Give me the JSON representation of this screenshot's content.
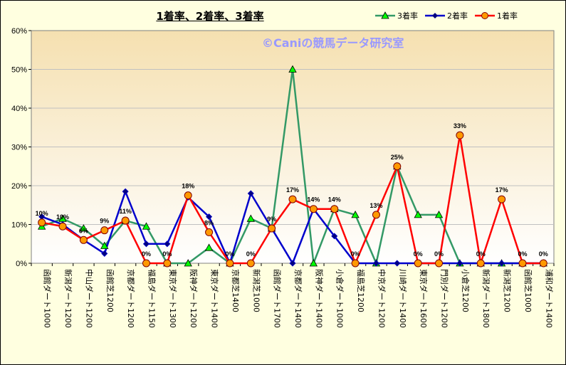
{
  "chart_data": {
    "type": "line",
    "title": "1着率、2着率、3着率",
    "watermark": "©Caniの競馬データ研究室",
    "ylim": [
      0,
      60
    ],
    "yticks": [
      "0%",
      "10%",
      "20%",
      "30%",
      "40%",
      "50%",
      "60%"
    ],
    "categories": [
      "函館ダート1000",
      "新潟ダート1200",
      "中山ダート1200",
      "函館芝1200",
      "京都ダート1200",
      "福島ダート1150",
      "東京ダート1300",
      "阪神ダート1200",
      "東京ダート1400",
      "京都芝1400",
      "新潟芝1000",
      "函館ダート1700",
      "京都ダート1400",
      "阪神ダート1400",
      "小倉ダート1000",
      "福島芝1200",
      "中京ダート1200",
      "川崎ダート1400",
      "東京ダート1600",
      "門別ダート1200",
      "小倉芝1200",
      "新潟ダート1800",
      "新潟芝1200",
      "函館芝1000",
      "浦和ダート1400"
    ],
    "legend_position": "top-right",
    "series": [
      {
        "name": "3着率",
        "color": "#339966",
        "marker": "triangle",
        "marker_fill": "#00ff00",
        "values": [
          9.5,
          11.5,
          9,
          4.5,
          11,
          9.5,
          0,
          0,
          4,
          0,
          11.5,
          9,
          50,
          0,
          14,
          12.5,
          0,
          25,
          12.5,
          12.5,
          0,
          0,
          0,
          0,
          0
        ]
      },
      {
        "name": "2着率",
        "color": "#0000cc",
        "marker": "diamond",
        "marker_fill": "#000080",
        "values": [
          12,
          10,
          6,
          2.5,
          18.5,
          5,
          5,
          17,
          12,
          0,
          18,
          9,
          0,
          14,
          7,
          0,
          0,
          0,
          0,
          0,
          0,
          0,
          0,
          0,
          0
        ]
      },
      {
        "name": "1着率",
        "color": "#ff0000",
        "marker": "circle",
        "marker_fill": "#ff9900",
        "values": [
          10.5,
          9.5,
          6,
          8.5,
          11,
          0,
          0,
          17.5,
          8,
          0,
          0,
          9,
          16.5,
          14,
          14,
          0,
          12.5,
          25,
          0,
          0,
          33,
          0,
          16.5,
          0,
          0
        ]
      }
    ],
    "data_labels": [
      {
        "index": 0,
        "text": "10%"
      },
      {
        "index": 1,
        "text": "10%"
      },
      {
        "index": 2,
        "text": "6%"
      },
      {
        "index": 3,
        "text": "9%"
      },
      {
        "index": 4,
        "text": "11%"
      },
      {
        "index": 5,
        "text": "0%"
      },
      {
        "index": 6,
        "text": "0%"
      },
      {
        "index": 7,
        "text": "18%"
      },
      {
        "index": 8,
        "text": "8%"
      },
      {
        "index": 9,
        "text": "0%"
      },
      {
        "index": 10,
        "text": "0%"
      },
      {
        "index": 11,
        "text": "9%"
      },
      {
        "index": 12,
        "text": "17%"
      },
      {
        "index": 13,
        "text": "14%"
      },
      {
        "index": 14,
        "text": "14%"
      },
      {
        "index": 15,
        "text": "0%"
      },
      {
        "index": 16,
        "text": "13%"
      },
      {
        "index": 17,
        "text": "25%"
      },
      {
        "index": 18,
        "text": "0%"
      },
      {
        "index": 19,
        "text": "0%"
      },
      {
        "index": 20,
        "text": "33%"
      },
      {
        "index": 21,
        "text": "0%"
      },
      {
        "index": 22,
        "text": "17%"
      },
      {
        "index": 23,
        "text": "0%"
      },
      {
        "index": 24,
        "text": "0%"
      }
    ],
    "grid": true
  }
}
